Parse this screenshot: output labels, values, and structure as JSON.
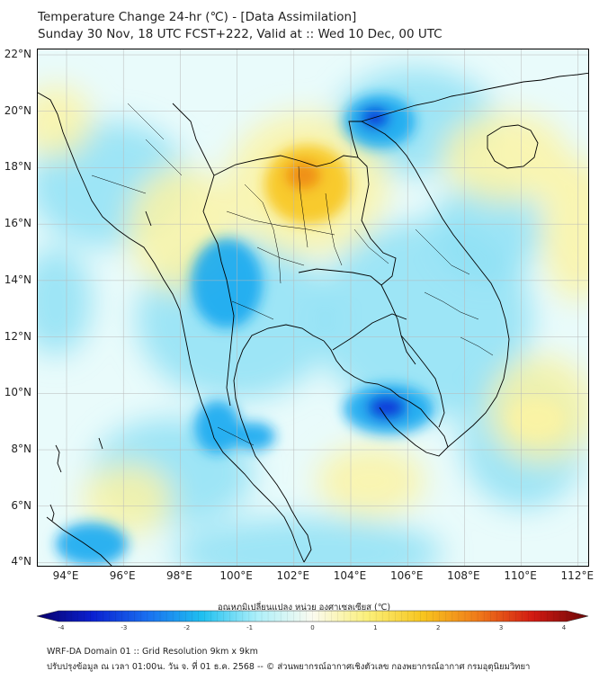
{
  "header": {
    "title_line1": "Temperature Change 24-hr (℃) - [Data Assimilation]",
    "title_line2": "Sunday 30 Nov, 18 UTC FCST+222, Valid at :: Wed 10 Dec, 00 UTC"
  },
  "map": {
    "lat_labels": [
      "22°N",
      "20°N",
      "18°N",
      "16°N",
      "14°N",
      "12°N",
      "10°N",
      "8°N",
      "6°N",
      "4°N"
    ],
    "lon_labels": [
      "94°E",
      "96°E",
      "98°E",
      "100°E",
      "102°E",
      "104°E",
      "106°E",
      "108°E",
      "110°E",
      "112°E"
    ],
    "colors": {
      "strong_cold": "#0a2fd8",
      "cold": "#1aa8ef",
      "cool": "#8fe1f5",
      "neutral": "#e9fbfb",
      "warm": "#fbf3a4",
      "hot": "#f7c51e",
      "strong_hot": "#f08a1a",
      "border": "#000000",
      "grid": "#b8b8b8"
    }
  },
  "colorbar": {
    "title": "อุณหภูมิเปลี่ยนแปลง หน่วย องศาเซลเซียส (℃)",
    "ticks": [
      "-4",
      "-3",
      "-2",
      "-1",
      "0",
      "1",
      "2",
      "3",
      "4"
    ],
    "min": -4,
    "max": 4,
    "stops": [
      "#08006a",
      "#0a1fd0",
      "#1a6ff0",
      "#1fc0f0",
      "#aef0fa",
      "#fbfbf0",
      "#fbf07a",
      "#f7c51e",
      "#f07a1a",
      "#d21a12",
      "#6a0808"
    ]
  },
  "footer": {
    "line1": "WRF-DA Domain 01 :: Grid Resolution 9km x 9km",
    "line2": "ปรับปรุงข้อมูล ณ เวลา 01:00น. วัน จ. ที่ 01 ธ.ค. 2568 -- © ส่วนพยากรณ์อากาศเชิงตัวเลข กองพยากรณ์อากาศ กรมอุตุนิยมวิทยา"
  }
}
